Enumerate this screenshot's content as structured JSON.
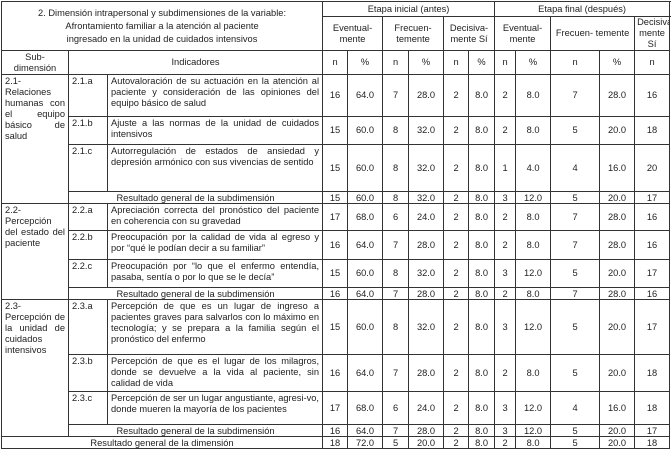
{
  "header": {
    "title_lines": [
      "2. Dimensión intrapersonal y subdimensiones de la variable:",
      "Afrontamiento familiar a la atención al paciente",
      "ingresado en la unidad de cuidados intensivos"
    ],
    "sub_label": "Sub- dimensión",
    "indicators_label": "Indicadores",
    "stages": [
      "Etapa inicial (antes)",
      "Etapa final (después)"
    ],
    "categories": [
      "Eventual- mente",
      "Frecuen- temente",
      "Decisiva- mente Sí",
      "Eventual- mente",
      "Frecuen- temente",
      "Decisiva- mente Sí"
    ],
    "sub_cols": [
      "n",
      "%",
      "n",
      "%",
      "n",
      "%",
      "n",
      "%",
      "n",
      "%",
      "n",
      "%"
    ]
  },
  "groups": [
    {
      "sub": "2.1- Relaciones humanas con el equipo básico de salud",
      "items": [
        {
          "code": "2.1.a",
          "text": "Autovaloración de su actuación en la atención al paciente y consideración de las opiniones del equipo básico de salud",
          "values": [
            "16",
            "64.0",
            "7",
            "28.0",
            "2",
            "8.0",
            "2",
            "8.0",
            "7",
            "28.0",
            "16",
            "64.0"
          ]
        },
        {
          "code": "2.1.b",
          "text": "Ajuste a las normas de la unidad de cuidados intensivos",
          "values": [
            "15",
            "60.0",
            "8",
            "32.0",
            "2",
            "8.0",
            "2",
            "8.0",
            "5",
            "20.0",
            "18",
            "72.0"
          ]
        },
        {
          "code": "2.1.c",
          "text": "Autorregulación de estados de ansiedad y depresión armónico con sus vivencias de sentido",
          "values": [
            "15",
            "60.0",
            "8",
            "32.0",
            "2",
            "8.0",
            "1",
            "4.0",
            "4",
            "16.0",
            "20",
            "80.0"
          ]
        }
      ],
      "result_label": "Resultado general de la subdimensión",
      "result": [
        "15",
        "60.0",
        "8",
        "32.0",
        "2",
        "8.0",
        "3",
        "12.0",
        "5",
        "20.0",
        "17",
        "68.0"
      ]
    },
    {
      "sub": "2.2- Percepción del estado del paciente",
      "items": [
        {
          "code": "2.2.a",
          "text": "Apreciación correcta del pronóstico del paciente en coherencia con su gravedad",
          "values": [
            "17",
            "68.0",
            "6",
            "24.0",
            "2",
            "8.0",
            "2",
            "8.0",
            "7",
            "28.0",
            "16",
            "64.0"
          ]
        },
        {
          "code": "2.2.b",
          "text": "Preocupación por la calidad de vida al egreso y por “qué le podían decir a su familiar”",
          "values": [
            "16",
            "64.0",
            "7",
            "28.0",
            "2",
            "8.0",
            "2",
            "8.0",
            "7",
            "28.0",
            "16",
            "64.0"
          ]
        },
        {
          "code": "2.2.c",
          "text": "Preocupación por “lo que el enfermo entendía, pasaba, sentía o por lo que se le decía”",
          "values": [
            "15",
            "60.0",
            "8",
            "32.0",
            "2",
            "8.0",
            "3",
            "12.0",
            "5",
            "20.0",
            "17",
            "68.0"
          ]
        }
      ],
      "result_label": "Resultado general de la subdimensión",
      "result": [
        "16",
        "64.0",
        "7",
        "28.0",
        "2",
        "8.0",
        "2",
        "8.0",
        "7",
        "28.0",
        "16",
        "64.0"
      ]
    },
    {
      "sub": "2.3- Percepción de la unidad de cuidados intensivos",
      "items": [
        {
          "code": "2.3.a",
          "text": "Percepción de que es un lugar de ingreso a pacientes graves para salvarlos con lo máximo en tecnología; y se prepara a la familia según el pronóstico del enfermo",
          "values": [
            "15",
            "60.0",
            "8",
            "32.0",
            "2",
            "8.0",
            "3",
            "12.0",
            "5",
            "20.0",
            "17",
            "68.0"
          ]
        },
        {
          "code": "2.3.b",
          "text": "Percepción de que es el lugar de los milagros, donde se devuelve a la vida al paciente, sin calidad de vida",
          "values": [
            "16",
            "64.0",
            "7",
            "28.0",
            "2",
            "8.0",
            "2",
            "8.0",
            "5",
            "20.0",
            "18",
            "72.0"
          ]
        },
        {
          "code": "2.3.c",
          "text": "Percepción de ser un lugar angustiante, agresi-vo, donde mueren la mayoría de los pacientes",
          "values": [
            "17",
            "68.0",
            "6",
            "24.0",
            "2",
            "8.0",
            "3",
            "12.0",
            "4",
            "16.0",
            "18",
            "72.0"
          ]
        }
      ],
      "result_label": "Resultado general de la subdimensión",
      "result": [
        "16",
        "64.0",
        "7",
        "28.0",
        "2",
        "8.0",
        "3",
        "12.0",
        "5",
        "20.0",
        "17",
        "68.0"
      ]
    }
  ],
  "general": {
    "label": "Resultado general de la dimensión",
    "values": [
      "18",
      "72.0",
      "5",
      "20.0",
      "2",
      "8.0",
      "2",
      "8.0",
      "5",
      "20.0",
      "18",
      "72.0"
    ]
  }
}
